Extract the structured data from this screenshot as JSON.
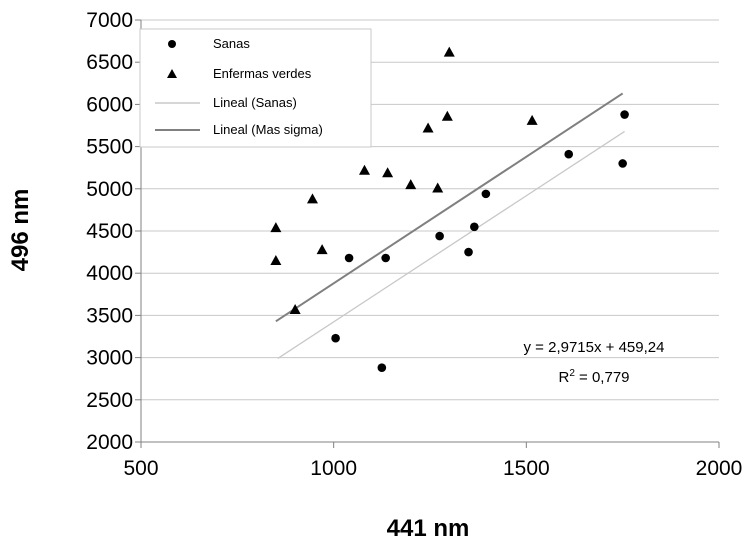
{
  "chart_data": {
    "type": "scatter",
    "xlabel": "441 nm",
    "ylabel": "496 nm",
    "xlim": [
      500,
      2000
    ],
    "ylim": [
      2000,
      7000
    ],
    "x_ticks": [
      "500",
      "1000",
      "1500",
      "2000"
    ],
    "y_ticks": [
      "2000",
      "2500",
      "3000",
      "3500",
      "4000",
      "4500",
      "5000",
      "5500",
      "6000",
      "6500",
      "7000"
    ],
    "grid": "horizontal",
    "legend_position": "top-left",
    "legend": [
      "Sanas",
      "Enfermas verdes",
      "Lineal (Sanas)",
      "Lineal (Mas sigma)"
    ],
    "series": [
      {
        "name": "Sanas",
        "marker": "circle",
        "points": [
          [
            1005,
            3230
          ],
          [
            1040,
            4180
          ],
          [
            1125,
            2880
          ],
          [
            1135,
            4180
          ],
          [
            1275,
            4440
          ],
          [
            1350,
            4250
          ],
          [
            1365,
            4550
          ],
          [
            1395,
            4940
          ],
          [
            1610,
            5410
          ],
          [
            1750,
            5300
          ],
          [
            1755,
            5880
          ]
        ]
      },
      {
        "name": "Enfermas verdes",
        "marker": "triangle",
        "points": [
          [
            850,
            4540
          ],
          [
            850,
            4150
          ],
          [
            900,
            3570
          ],
          [
            945,
            4880
          ],
          [
            970,
            4280
          ],
          [
            1080,
            5220
          ],
          [
            1140,
            5190
          ],
          [
            1200,
            5050
          ],
          [
            1245,
            5720
          ],
          [
            1270,
            5010
          ],
          [
            1295,
            5860
          ],
          [
            1300,
            6620
          ],
          [
            1515,
            5810
          ]
        ]
      }
    ],
    "trendlines": [
      {
        "name": "Lineal (Sanas)",
        "color": "#c8c8c8",
        "x": [
          855,
          1755
        ],
        "y": [
          2990,
          5680
        ]
      },
      {
        "name": "Lineal (Mas sigma)",
        "color": "#808080",
        "x": [
          850,
          1750
        ],
        "y": [
          3430,
          6130
        ]
      }
    ],
    "annotations": {
      "equation": "y = 2,9715x + 459,24",
      "r_squared_prefix": "R",
      "r_squared_sup": "2",
      "r_squared_value": " = 0,779"
    }
  }
}
